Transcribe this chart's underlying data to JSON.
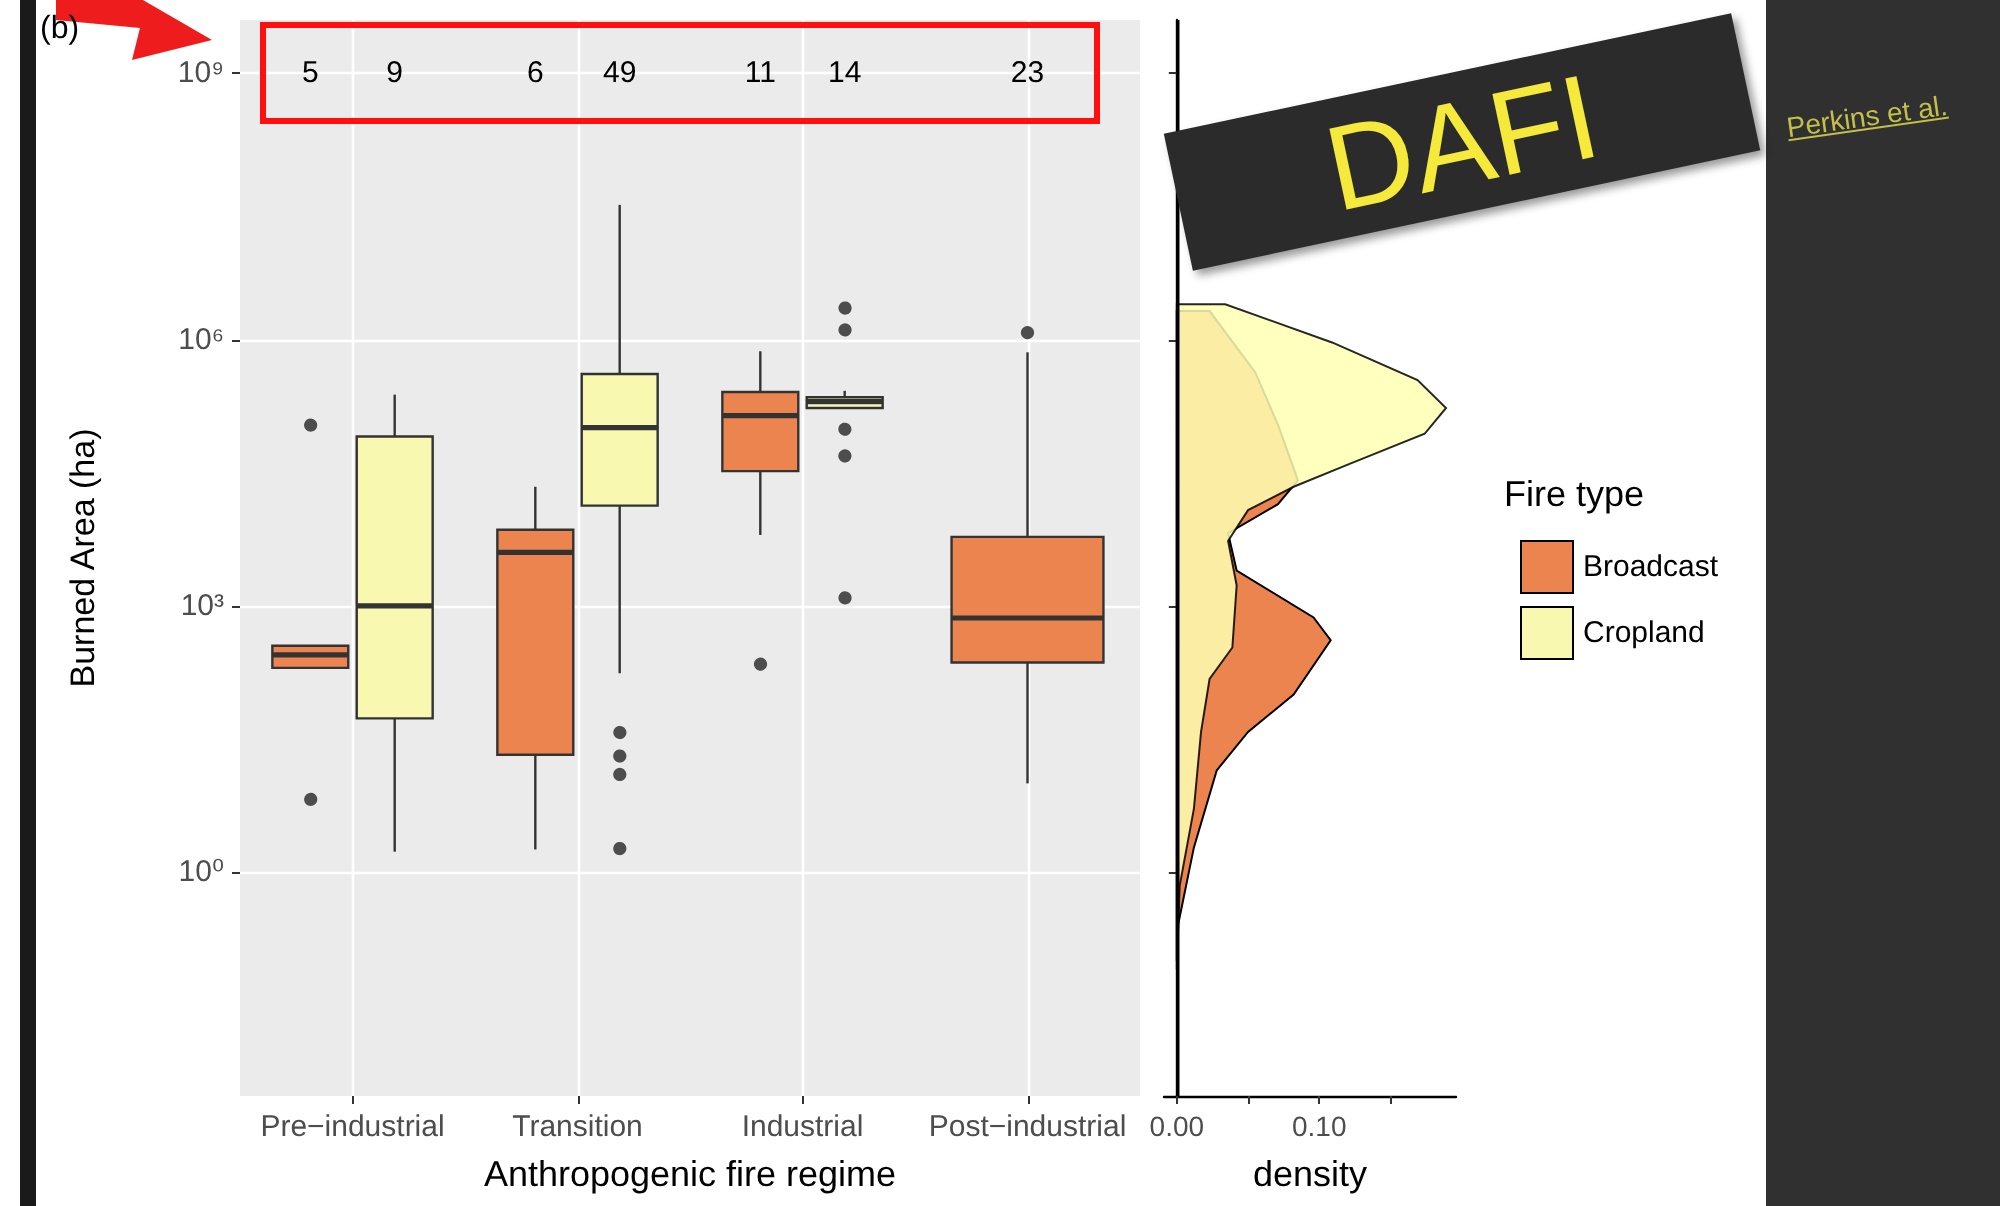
{
  "chart_data": [
    {
      "type": "box",
      "xlabel": "Anthropogenic fire regime",
      "ylabel": "Burned Area (ha)",
      "categories": [
        "Pre−industrial",
        "Transition",
        "Industrial",
        "Post−industrial"
      ],
      "log": "y",
      "ylim": [
        0.003,
        4000000000
      ],
      "yticks": [
        {
          "value": 1,
          "label": "10⁰"
        },
        {
          "value": 1000,
          "label": "10³"
        },
        {
          "value": 1000000,
          "label": "10⁶"
        },
        {
          "value": 1000000000,
          "label": "10⁹"
        }
      ],
      "grid": true,
      "legend": "right",
      "legend_title": "Fire type",
      "annotations": [
        "(b)",
        "Perkins et al.",
        "DAFI"
      ],
      "series": [
        {
          "name": "Broadcast",
          "color": "#ec8450",
          "value_labels": [
            "5",
            "6",
            "11",
            "23"
          ],
          "boxes": [
            {
              "low": 200,
              "q1": 200,
              "median": 280,
              "q3": 355,
              "high": 355,
              "outliers": [
                115000,
                7
              ]
            },
            {
              "low": 1.8,
              "q1": 21,
              "median": 4000,
              "q3": 7200,
              "high": 22000
            },
            {
              "low": 6300,
              "q1": 33000,
              "median": 139000,
              "q3": 257000,
              "high": 740000,
              "outliers": [
                230
              ]
            },
            {
              "low": 10,
              "q1": 230,
              "median": 730,
              "q3": 6000,
              "high": 720000,
              "outliers": [
                1200000
              ]
            }
          ]
        },
        {
          "name": "Cropland",
          "color": "#f8f8b0",
          "value_labels": [
            "9",
            "49",
            "14",
            null
          ],
          "boxes": [
            {
              "low": 1.7,
              "q1": 54,
              "median": 1000,
              "q3": 81000,
              "high": 240000
            },
            {
              "low": 174,
              "q1": 13500,
              "median": 102000,
              "q3": 410000,
              "high": 33000000,
              "outliers": [
                39,
                21,
                13,
                1.9
              ]
            },
            {
              "low": 170000,
              "q1": 170000,
              "median": 200000,
              "q3": 224000,
              "high": 265000,
              "outliers": [
                2400000,
                1360000,
                102000,
                51000,
                1300
              ]
            },
            null
          ]
        }
      ]
    },
    {
      "type": "area",
      "orientation": "horizontal",
      "xlabel": "density",
      "xlim": [
        -0.009,
        0.196
      ],
      "xticks": [
        {
          "value": 0,
          "label": "0.00"
        },
        {
          "value": 0.05,
          "label": null
        },
        {
          "value": 0.1,
          "label": "0.10"
        },
        {
          "value": 0.15,
          "label": null
        }
      ],
      "log": "y",
      "ylim": [
        0.003,
        4000000000
      ],
      "yticks": [
        {
          "value": 1,
          "label": null
        },
        {
          "value": 1000,
          "label": null
        },
        {
          "value": 1000000,
          "label": null
        },
        {
          "value": 1000000000,
          "label": null
        }
      ],
      "tick_labels": "x",
      "grid": false,
      "ref_lines": [
        {
          "axis": "x",
          "value": 0
        }
      ],
      "series": [
        {
          "color": "#ec8450",
          "x": [
            2100000,
            430000,
            110000,
            26000,
            14000,
            6600,
            2500,
            740,
            410,
            100,
            38,
            14,
            1.9,
            0.26,
            0.08
          ],
          "values": [
            0.023,
            0.055,
            0.071,
            0.085,
            0.071,
            0.036,
            0.042,
            0.096,
            0.108,
            0.082,
            0.05,
            0.028,
            0.012,
            0.001,
            0
          ]
        },
        {
          "color": "#ffffb3",
          "x": [
            2500000,
            930000,
            350000,
            170000,
            87000,
            39000,
            22000,
            12000,
            5400,
            1700,
            340,
            150,
            38,
            5.2,
            0.7,
            0.1
          ],
          "values": [
            0.034,
            0.109,
            0.169,
            0.189,
            0.174,
            0.12,
            0.082,
            0.05,
            0.036,
            0.042,
            0.039,
            0.023,
            0.017,
            0.012,
            0.002,
            0
          ]
        }
      ]
    }
  ]
}
